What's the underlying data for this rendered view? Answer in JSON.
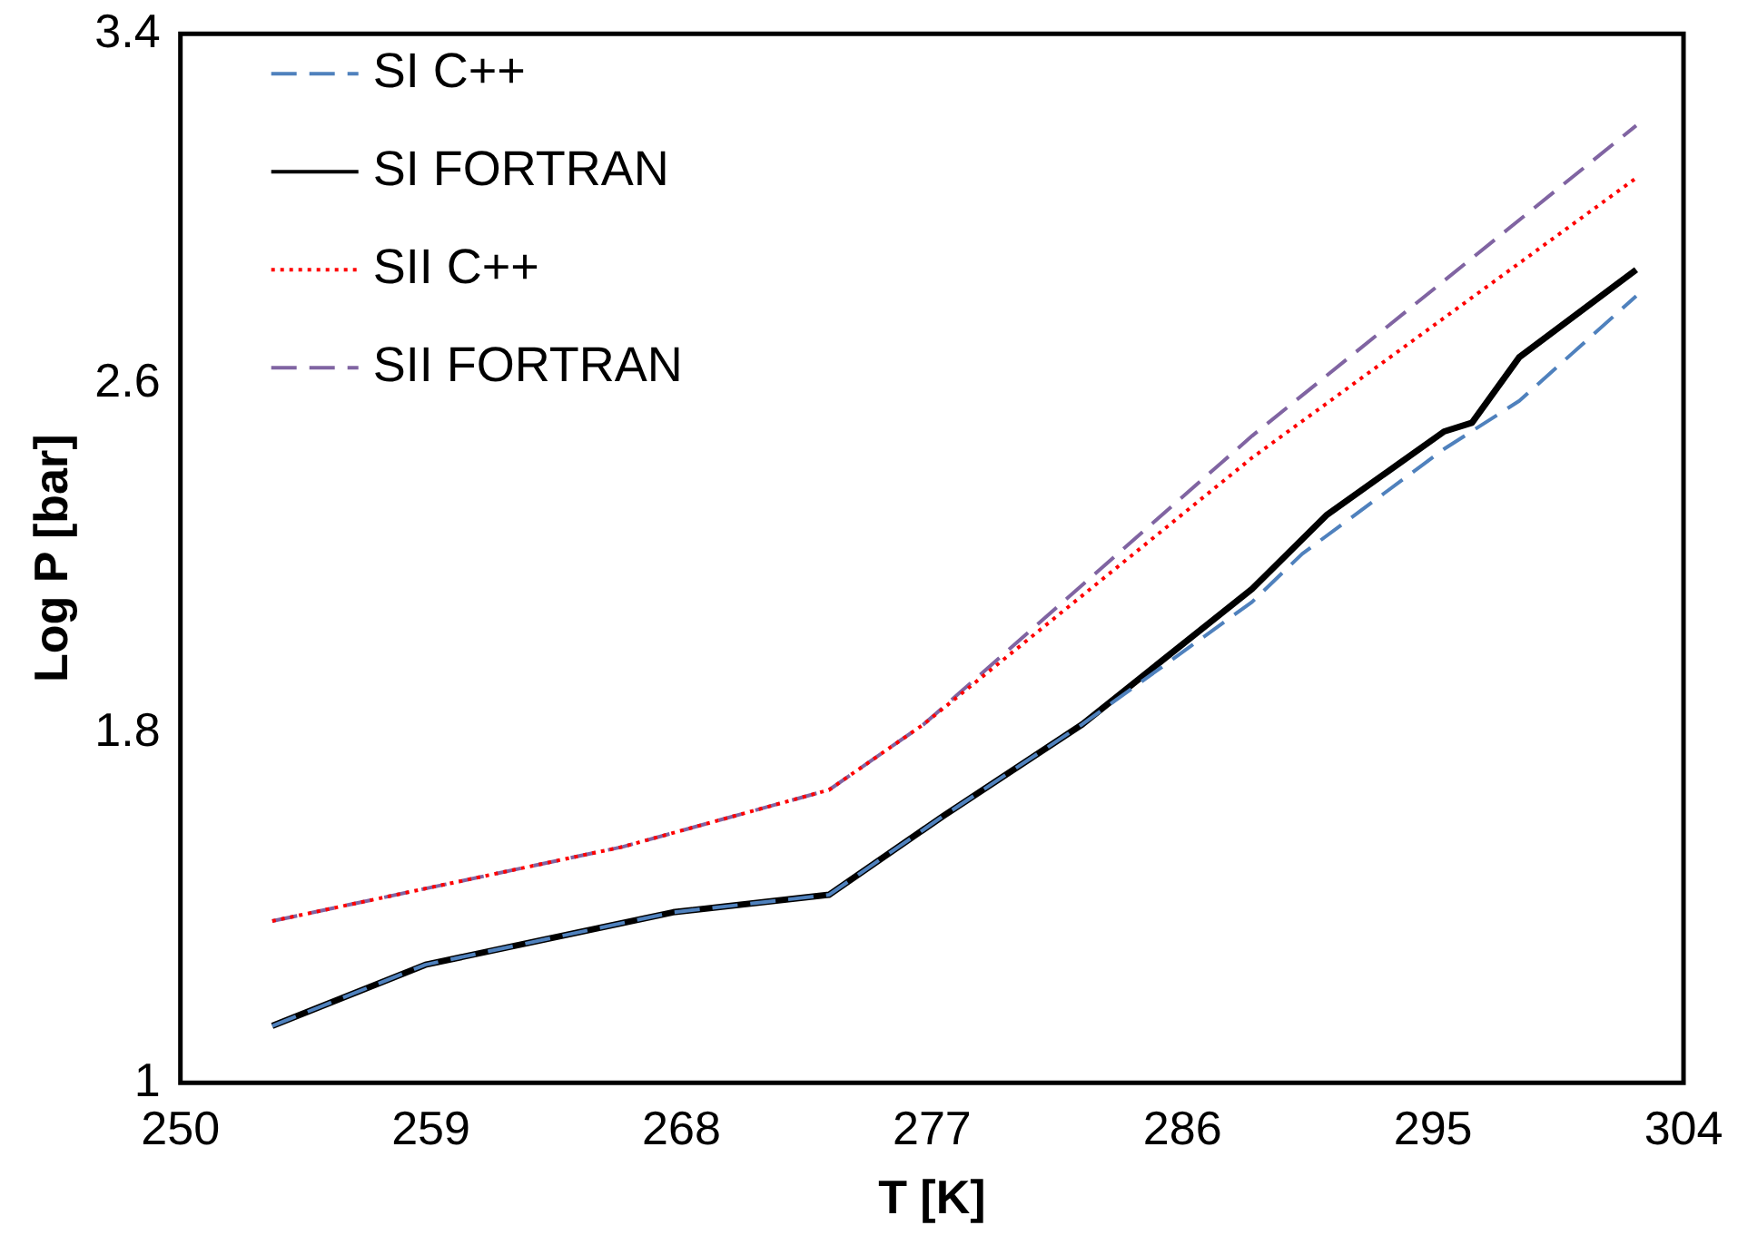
{
  "chart_data": {
    "type": "line",
    "xlabel": "T [K]",
    "ylabel": "Log P [bar]",
    "xlim": [
      250,
      304
    ],
    "xticks": [
      250,
      259,
      268,
      277,
      286,
      295,
      304
    ],
    "ylim": [
      1,
      3.4
    ],
    "yticks": [
      1,
      1.8,
      2.6,
      3.4
    ],
    "grid": false,
    "legend": "top left",
    "marker": "none",
    "series": [
      {
        "name": "SI C++",
        "color": "#4f81bd",
        "line_style": "dashed",
        "x": [
          253.3,
          258.8,
          267.7,
          273.3,
          277.4,
          282.4,
          288.5,
          290.3,
          295.4,
          298.1,
          302.3
        ],
        "values": [
          1.13,
          1.27,
          1.39,
          1.43,
          1.61,
          1.82,
          2.1,
          2.21,
          2.45,
          2.56,
          2.8
        ]
      },
      {
        "name": "SI FORTRAN",
        "color": "#000000",
        "line_style": "solid",
        "x": [
          253.3,
          258.8,
          267.7,
          273.3,
          277.4,
          282.4,
          288.5,
          291.2,
          295.4,
          296.4,
          298.1,
          302.3
        ],
        "values": [
          1.13,
          1.27,
          1.39,
          1.43,
          1.61,
          1.82,
          2.13,
          2.3,
          2.49,
          2.51,
          2.66,
          2.86
        ]
      },
      {
        "name": "SII C++",
        "color": "#ff0000",
        "line_style": "dotted",
        "x": [
          253.3,
          265.9,
          273.3,
          276.7,
          288.5,
          302.3
        ],
        "values": [
          1.37,
          1.54,
          1.67,
          1.82,
          2.43,
          3.07
        ]
      },
      {
        "name": "SII FORTRAN",
        "color": "#8064a2",
        "line_style": "dashed",
        "x": [
          253.3,
          265.9,
          273.3,
          276.7,
          288.5,
          302.3
        ],
        "values": [
          1.37,
          1.54,
          1.67,
          1.82,
          2.48,
          3.19
        ]
      }
    ]
  }
}
